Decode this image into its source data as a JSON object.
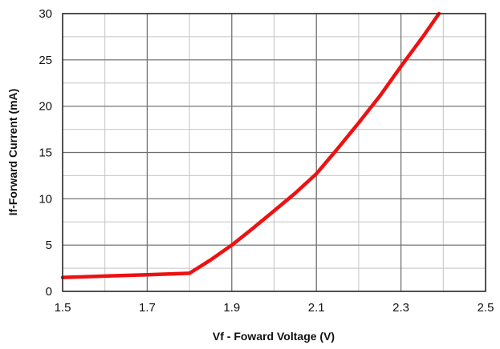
{
  "chart_data": {
    "type": "line",
    "title": "",
    "xlabel": "Vf - Foward Voltage (V)",
    "ylabel": "If-Forward Current (mA)",
    "xlim": [
      1.5,
      2.5
    ],
    "ylim": [
      0,
      30
    ],
    "x_ticks": [
      "1.5",
      "1.7",
      "1.9",
      "2.1",
      "2.3",
      "2.5"
    ],
    "y_ticks": [
      "0",
      "5",
      "10",
      "15",
      "20",
      "25",
      "30"
    ],
    "x_minor_step": 0.1,
    "y_minor_step": 2.5,
    "grid": true,
    "legend": "none",
    "series": [
      {
        "color": "#ee1111",
        "x": [
          1.5,
          1.6,
          1.7,
          1.8,
          1.85,
          1.9,
          1.95,
          2.0,
          2.05,
          2.1,
          2.15,
          2.2,
          2.25,
          2.3,
          2.35,
          2.39
        ],
        "y": [
          1.5,
          1.65,
          1.8,
          1.95,
          3.4,
          5.0,
          6.8,
          8.7,
          10.6,
          12.7,
          15.4,
          18.2,
          21.1,
          24.3,
          27.4,
          30.0
        ]
      }
    ]
  }
}
